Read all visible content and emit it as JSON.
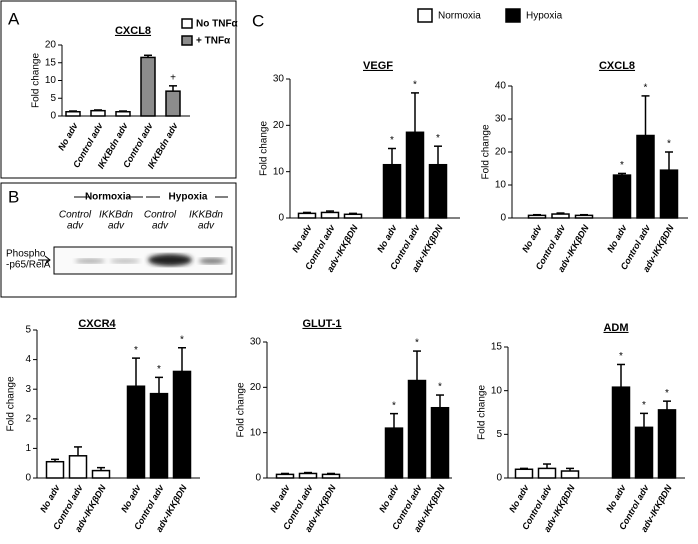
{
  "panel_labels": [
    "A",
    "B",
    "C"
  ],
  "blot": {
    "normoxia": "Normoxia",
    "hypoxia": "Hypoxia",
    "lanes": [
      [
        "Control",
        "adv"
      ],
      [
        "IKKBdn",
        "adv"
      ],
      [
        "Control",
        "adv"
      ],
      [
        "IKKBdn",
        "adv"
      ]
    ],
    "row_label": [
      "Phospho",
      "-p65/RelA"
    ]
  },
  "chart_data": [
    {
      "type": "bar",
      "title": "CXCL8",
      "y_label": "Fold change",
      "categories": [
        "No adv",
        "Control adv",
        "IKKBdn adv",
        "Control adv",
        "IKKBdn adv"
      ],
      "ylim": [
        0,
        20
      ],
      "yticks": [
        0,
        5,
        10,
        15,
        20
      ],
      "series": [
        {
          "name": "No TNFα",
          "color": "#ffffff",
          "values": [
            1.2,
            1.5,
            1.2,
            null,
            null
          ],
          "errors": [
            0.2,
            0.2,
            0.2,
            null,
            null
          ],
          "annotations": [
            null,
            null,
            null,
            null,
            null
          ]
        },
        {
          "name": "+ TNFα",
          "color": "#8c8c8c",
          "values": [
            null,
            null,
            null,
            16.5,
            7
          ],
          "errors": [
            null,
            null,
            null,
            0.6,
            1.5
          ],
          "annotations": [
            null,
            null,
            null,
            null,
            "+"
          ]
        }
      ]
    },
    {
      "type": "bar",
      "title": "VEGF",
      "y_label": "Fold change",
      "categories": [
        "No adv",
        "Control adv",
        "adv-IKKβDN",
        "No adv",
        "Control adv",
        "adv-IKKβDN"
      ],
      "ylim": [
        0,
        30
      ],
      "yticks": [
        0,
        10,
        20,
        30
      ],
      "series": [
        {
          "name": "Normoxia",
          "color": "#ffffff",
          "values": [
            1,
            1.2,
            0.8,
            null,
            null,
            null
          ],
          "errors": [
            0.2,
            0.3,
            0.2,
            null,
            null,
            null
          ],
          "annotations": [
            null,
            null,
            null,
            null,
            null,
            null
          ]
        },
        {
          "name": "Hypoxia",
          "color": "#000000",
          "values": [
            null,
            null,
            null,
            11.5,
            18.5,
            11.5
          ],
          "errors": [
            null,
            null,
            null,
            3.5,
            8.5,
            4
          ],
          "annotations": [
            null,
            null,
            null,
            "*",
            "*",
            "*"
          ]
        }
      ]
    },
    {
      "type": "bar",
      "title": "CXCL8",
      "y_label": "Fold change",
      "categories": [
        "No adv",
        "Control adv",
        "adv-IKKβDN",
        "No adv",
        "Control adv",
        "adv-IKKβDN"
      ],
      "ylim": [
        0,
        40
      ],
      "yticks": [
        0,
        10,
        20,
        30,
        40
      ],
      "series": [
        {
          "name": "Normoxia",
          "color": "#ffffff",
          "values": [
            0.8,
            1.2,
            0.8,
            null,
            null,
            null
          ],
          "errors": [
            0.2,
            0.3,
            0.2,
            null,
            null,
            null
          ],
          "annotations": [
            null,
            null,
            null,
            null,
            null,
            null
          ]
        },
        {
          "name": "Hypoxia",
          "color": "#000000",
          "values": [
            null,
            null,
            null,
            13,
            25,
            14.5
          ],
          "errors": [
            null,
            null,
            null,
            0.5,
            12,
            5.5
          ],
          "annotations": [
            null,
            null,
            null,
            "*",
            "*",
            "*"
          ]
        }
      ]
    },
    {
      "type": "bar",
      "title": "CXCR4",
      "y_label": "Fold change",
      "categories": [
        "No adv",
        "Control adv",
        "adv-IKKβDN",
        "No adv",
        "Control adv",
        "adv-IKKβDN"
      ],
      "ylim": [
        0,
        5
      ],
      "yticks": [
        0,
        1,
        2,
        3,
        4,
        5
      ],
      "series": [
        {
          "name": "Normoxia",
          "color": "#ffffff",
          "values": [
            0.55,
            0.75,
            0.25,
            null,
            null,
            null
          ],
          "errors": [
            0.08,
            0.3,
            0.1,
            null,
            null,
            null
          ],
          "annotations": [
            null,
            null,
            null,
            null,
            null,
            null
          ]
        },
        {
          "name": "Hypoxia",
          "color": "#000000",
          "values": [
            null,
            null,
            null,
            3.1,
            2.85,
            3.6
          ],
          "errors": [
            null,
            null,
            null,
            0.95,
            0.55,
            0.8
          ],
          "annotations": [
            null,
            null,
            null,
            "*",
            "*",
            "*"
          ]
        }
      ]
    },
    {
      "type": "bar",
      "title": "GLUT-1",
      "y_label": "Fold change",
      "categories": [
        "No adv",
        "Control adv",
        "adv-IKKβDN",
        "No adv",
        "Control adv",
        "adv-IKKβDN"
      ],
      "ylim": [
        0,
        30
      ],
      "yticks": [
        0,
        10,
        20,
        30
      ],
      "series": [
        {
          "name": "Normoxia",
          "color": "#ffffff",
          "values": [
            0.8,
            1,
            0.8,
            null,
            null,
            null
          ],
          "errors": [
            0.2,
            0.2,
            0.2,
            null,
            null,
            null
          ],
          "annotations": [
            null,
            null,
            null,
            null,
            null,
            null
          ]
        },
        {
          "name": "Hypoxia",
          "color": "#000000",
          "values": [
            null,
            null,
            null,
            11,
            21.5,
            15.5
          ],
          "errors": [
            null,
            null,
            null,
            3.2,
            6.5,
            2.8
          ],
          "annotations": [
            null,
            null,
            null,
            "*",
            "*",
            "*"
          ]
        }
      ]
    },
    {
      "type": "bar",
      "title": "ADM",
      "y_label": "Fold change",
      "categories": [
        "No adv",
        "Control adv",
        "adv-IKKβDN",
        "No adv",
        "Control adv",
        "adv-IKKβDN"
      ],
      "ylim": [
        0,
        15
      ],
      "yticks": [
        0,
        5,
        10,
        15
      ],
      "series": [
        {
          "name": "Normoxia",
          "color": "#ffffff",
          "values": [
            1,
            1.1,
            0.8,
            null,
            null,
            null
          ],
          "errors": [
            0.1,
            0.5,
            0.3,
            null,
            null,
            null
          ],
          "annotations": [
            null,
            null,
            null,
            null,
            null,
            null
          ]
        },
        {
          "name": "Hypoxia",
          "color": "#000000",
          "values": [
            null,
            null,
            null,
            10.4,
            5.8,
            7.8
          ],
          "errors": [
            null,
            null,
            null,
            2.6,
            1.6,
            1
          ],
          "annotations": [
            null,
            null,
            null,
            "*",
            "*",
            "*"
          ]
        }
      ]
    }
  ]
}
